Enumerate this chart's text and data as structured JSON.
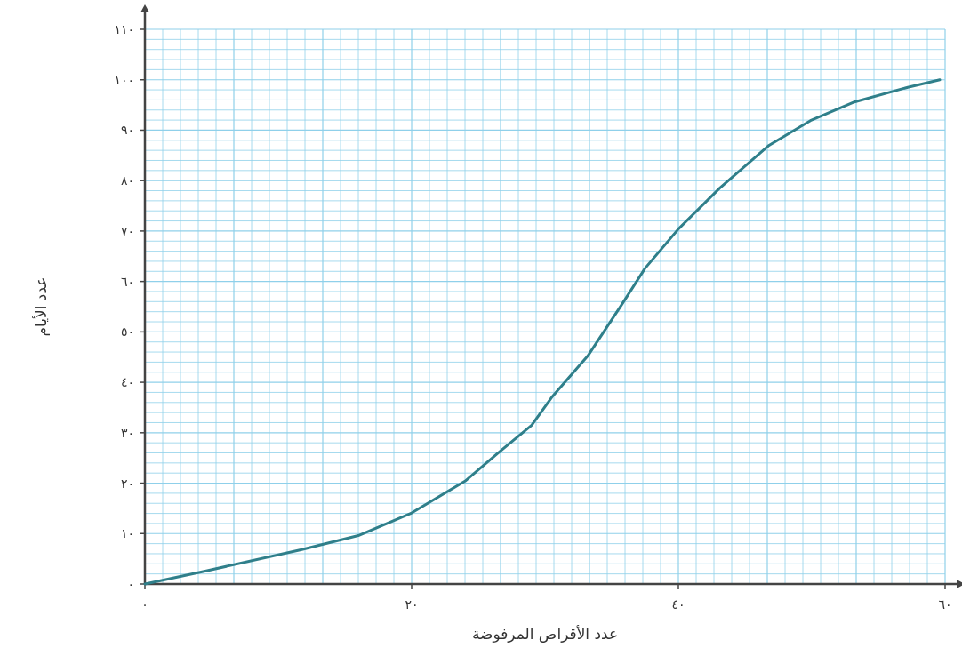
{
  "chart_data": {
    "type": "line",
    "xlabel": "عدد الأقراص المرفوضة",
    "ylabel": "عدد الأيام",
    "x": [
      0,
      4.6,
      11.7,
      16,
      20,
      24,
      26.8,
      29,
      30.5,
      33.2,
      35.8,
      37.5,
      40,
      43.1,
      46.8,
      49.9,
      53.2,
      57.2,
      59.6
    ],
    "series": [
      {
        "color": "#2f7f8a",
        "values": [
          0,
          2.6,
          6.8,
          9.6,
          14.1,
          20.4,
          26.7,
          31.5,
          37,
          45.2,
          55.6,
          62.6,
          70.4,
          78.5,
          87,
          91.9,
          95.6,
          98.5,
          100
        ]
      }
    ],
    "xlim": [
      0,
      60
    ],
    "ylim": [
      0,
      110
    ],
    "xticks": [
      {
        "value": 0,
        "label": "٠"
      },
      {
        "value": 20,
        "label": "٢٠"
      },
      {
        "value": 40,
        "label": "٤٠"
      },
      {
        "value": 60,
        "label": "٦٠"
      }
    ],
    "yticks": [
      {
        "value": 0,
        "label": "٠"
      },
      {
        "value": 10,
        "label": "١٠"
      },
      {
        "value": 20,
        "label": "٢٠"
      },
      {
        "value": 30,
        "label": "٣٠"
      },
      {
        "value": 40,
        "label": "٤٠"
      },
      {
        "value": 50,
        "label": "٥٠"
      },
      {
        "value": 60,
        "label": "٦٠"
      },
      {
        "value": 70,
        "label": "٧٠"
      },
      {
        "value": 80,
        "label": "٨٠"
      },
      {
        "value": 90,
        "label": "٩٠"
      },
      {
        "value": 100,
        "label": "١٠٠"
      },
      {
        "value": 110,
        "label": "١١٠"
      }
    ],
    "grid": true,
    "marker": "none",
    "line_style": "solid"
  }
}
